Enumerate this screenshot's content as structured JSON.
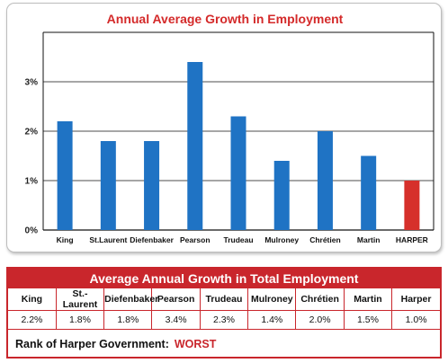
{
  "chart_data": {
    "type": "bar",
    "title": "Annual Average Growth in Employment",
    "categories": [
      "King",
      "St.Laurent",
      "Diefenbaker",
      "Pearson",
      "Trudeau",
      "Mulroney",
      "Chrétien",
      "Martin",
      "HARPER"
    ],
    "values": [
      2.2,
      1.8,
      1.8,
      3.4,
      2.3,
      1.4,
      2.0,
      1.5,
      1.0
    ],
    "y_ticks": [
      "0%",
      "1%",
      "2%",
      "3%"
    ],
    "ylim": [
      0,
      4
    ],
    "xlabel": "",
    "ylabel": "",
    "grid": "horizontal",
    "colors": {
      "title": "#d42a2a",
      "bar": "#1f73c4",
      "highlight_bar": "#d6302b",
      "grid": "#111111"
    },
    "highlight_category": "HARPER"
  },
  "table": {
    "title": "Average Annual Growth in Total Employment",
    "headers": [
      "King",
      "St.-Laurent",
      "Diefenbaker",
      "Pearson",
      "Trudeau",
      "Mulroney",
      "Chrétien",
      "Martin",
      "Harper"
    ],
    "values": [
      "2.2%",
      "1.8%",
      "1.8%",
      "3.4%",
      "2.3%",
      "1.4%",
      "2.0%",
      "1.5%",
      "1.0%"
    ]
  },
  "rank": {
    "label": "Rank of Harper Government:",
    "value": "WORST"
  },
  "colors": {
    "accent_red": "#c9262c"
  }
}
